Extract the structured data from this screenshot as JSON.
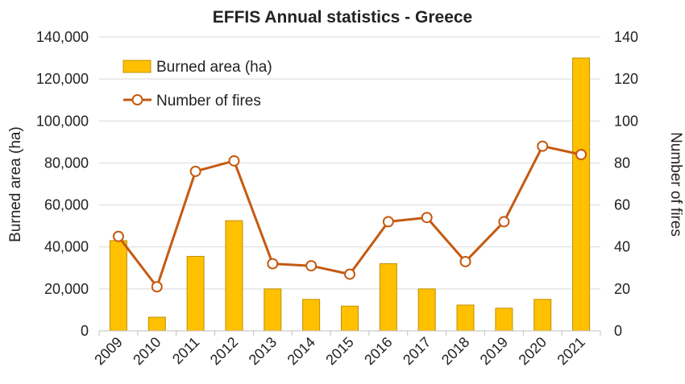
{
  "chart_data": {
    "type": "bar",
    "title": "EFFIS Annual statistics - Greece",
    "categories": [
      "2009",
      "2010",
      "2011",
      "2012",
      "2013",
      "2014",
      "2015",
      "2016",
      "2017",
      "2018",
      "2019",
      "2020",
      "2021"
    ],
    "series": [
      {
        "name": "Burned area (ha)",
        "kind": "bar",
        "axis": "left",
        "color": "#FFC000",
        "values": [
          43000,
          6500,
          35500,
          52500,
          20000,
          15000,
          11800,
          32000,
          20000,
          12300,
          10800,
          15000,
          130000
        ]
      },
      {
        "name": "Number of fires",
        "kind": "line",
        "axis": "right",
        "color": "#C55A11",
        "values": [
          45,
          21,
          76,
          81,
          32,
          31,
          27,
          52,
          54,
          33,
          52,
          88,
          84
        ]
      }
    ],
    "ylabel": "Burned area (ha)",
    "y2label": "Number of fires",
    "ylim": [
      0,
      140000
    ],
    "y2lim": [
      0,
      140
    ],
    "yticks": [
      "0",
      "20,000",
      "40,000",
      "60,000",
      "80,000",
      "100,000",
      "120,000",
      "140,000"
    ],
    "y2ticks": [
      "0",
      "20",
      "40",
      "60",
      "80",
      "100",
      "120",
      "140"
    ],
    "legend_position": "top-left",
    "grid": true
  }
}
